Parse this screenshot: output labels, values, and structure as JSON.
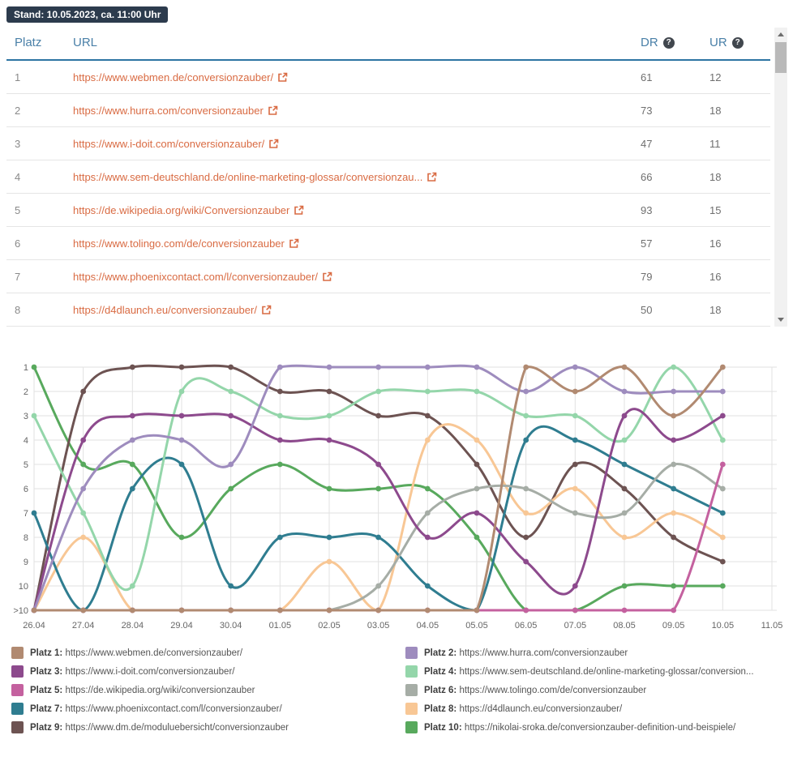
{
  "status_badge": "Stand: 10.05.2023, ca. 11:00 Uhr",
  "table": {
    "columns": {
      "platz": "Platz",
      "url": "URL",
      "dr": "DR",
      "ur": "UR"
    },
    "rows": [
      {
        "platz": "1",
        "url": "https://www.webmen.de/conversionzauber/",
        "dr": "61",
        "ur": "12"
      },
      {
        "platz": "2",
        "url": "https://www.hurra.com/conversionzauber",
        "dr": "73",
        "ur": "18"
      },
      {
        "platz": "3",
        "url": "https://www.i-doit.com/conversionzauber/",
        "dr": "47",
        "ur": "11"
      },
      {
        "platz": "4",
        "url": "https://www.sem-deutschland.de/online-marketing-glossar/conversionzau...",
        "dr": "66",
        "ur": "18"
      },
      {
        "platz": "5",
        "url": "https://de.wikipedia.org/wiki/Conversionzauber",
        "dr": "93",
        "ur": "15"
      },
      {
        "platz": "6",
        "url": "https://www.tolingo.com/de/conversionzauber",
        "dr": "57",
        "ur": "16"
      },
      {
        "platz": "7",
        "url": "https://www.phoenixcontact.com/l/conversionzauber/",
        "dr": "79",
        "ur": "16"
      },
      {
        "platz": "8",
        "url": "https://d4dlaunch.eu/conversionzauber/",
        "dr": "50",
        "ur": "18"
      }
    ]
  },
  "chart_data": {
    "type": "line",
    "x": [
      "26.04",
      "27.04",
      "28.04",
      "29.04",
      "30.04",
      "01.05",
      "02.05",
      "03.05",
      "04.05",
      "05.05",
      "06.05",
      "07.05",
      "08.05",
      "09.05",
      "10.05",
      "11.05"
    ],
    "y_labels": [
      "1",
      "2",
      "3",
      "4",
      "5",
      "6",
      "7",
      "8",
      "9",
      "10",
      ">10"
    ],
    "y_axis_note": "rank scale, 1 best at top, 11 encodes >10",
    "gt10_value": 11,
    "grid": true,
    "legend_position": "bottom",
    "series": [
      {
        "name": "Platz 1: https://www.webmen.de/conversionzauber/",
        "color": "#b18a71",
        "values": [
          11,
          11,
          11,
          11,
          11,
          11,
          11,
          11,
          11,
          11,
          1,
          2,
          1,
          3,
          1
        ]
      },
      {
        "name": "Platz 2: https://www.hurra.com/conversionzauber",
        "color": "#9e8cbe",
        "values": [
          11,
          6,
          4,
          4,
          5,
          1,
          1,
          1,
          1,
          1,
          2,
          1,
          2,
          2,
          2
        ]
      },
      {
        "name": "Platz 3: https://www.i-doit.com/conversionzauber/",
        "color": "#8d4a8d",
        "values": [
          11,
          4,
          3,
          3,
          3,
          4,
          4,
          5,
          8,
          7,
          9,
          10,
          3,
          4,
          3
        ]
      },
      {
        "name": "Platz 4: https://www.sem-deutschland.de/online-marketing-glossar/conversion...",
        "color": "#94d6aa",
        "values": [
          3,
          7,
          10,
          2,
          2,
          3,
          3,
          2,
          2,
          2,
          3,
          3,
          4,
          1,
          4
        ]
      },
      {
        "name": "Platz 5: https://de.wikipedia.org/wiki/conversionzauber",
        "color": "#c4619f",
        "values": [
          11,
          11,
          11,
          11,
          11,
          11,
          11,
          11,
          11,
          11,
          11,
          11,
          11,
          11,
          5
        ]
      },
      {
        "name": "Platz 6: https://www.tolingo.com/de/conversionzauber",
        "color": "#a6ada6",
        "values": [
          11,
          11,
          11,
          11,
          11,
          11,
          11,
          10,
          7,
          6,
          6,
          7,
          7,
          5,
          6
        ]
      },
      {
        "name": "Platz 7: https://www.phoenixcontact.com/l/conversionzauber/",
        "color": "#2f7d90",
        "values": [
          7,
          11,
          6,
          5,
          10,
          8,
          8,
          8,
          10,
          11,
          4,
          4,
          5,
          6,
          7
        ]
      },
      {
        "name": "Platz 8: https://d4dlaunch.eu/conversionzauber/",
        "color": "#f8c795",
        "values": [
          11,
          8,
          11,
          11,
          11,
          11,
          9,
          11,
          4,
          4,
          7,
          6,
          8,
          7,
          8
        ]
      },
      {
        "name": "Platz 9: https://www.dm.de/moduluebersicht/conversionzauber",
        "color": "#6d5352",
        "values": [
          11,
          2,
          1,
          1,
          1,
          2,
          2,
          3,
          3,
          5,
          8,
          5,
          6,
          8,
          9
        ]
      },
      {
        "name": "Platz 10: https://nikolai-sroka.de/conversionzauber-definition-und-beispiele/",
        "color": "#58a95d",
        "values": [
          1,
          5,
          5,
          8,
          6,
          5,
          6,
          6,
          6,
          8,
          11,
          11,
          10,
          10,
          10
        ]
      }
    ]
  },
  "legend": {
    "items": [
      {
        "platz": "Platz 1:",
        "url": "https://www.webmen.de/conversionzauber/",
        "color": "#b18a71"
      },
      {
        "platz": "Platz 2:",
        "url": "https://www.hurra.com/conversionzauber",
        "color": "#9e8cbe"
      },
      {
        "platz": "Platz 3:",
        "url": "https://www.i-doit.com/conversionzauber/",
        "color": "#8d4a8d"
      },
      {
        "platz": "Platz 4:",
        "url": "https://www.sem-deutschland.de/online-marketing-glossar/conversion...",
        "color": "#94d6aa"
      },
      {
        "platz": "Platz 5:",
        "url": "https://de.wikipedia.org/wiki/conversionzauber",
        "color": "#c4619f"
      },
      {
        "platz": "Platz 6:",
        "url": "https://www.tolingo.com/de/conversionzauber",
        "color": "#a6ada6"
      },
      {
        "platz": "Platz 7:",
        "url": "https://www.phoenixcontact.com/l/conversionzauber/",
        "color": "#2f7d90"
      },
      {
        "platz": "Platz 8:",
        "url": "https://d4dlaunch.eu/conversionzauber/",
        "color": "#f8c795"
      },
      {
        "platz": "Platz 9:",
        "url": "https://www.dm.de/moduluebersicht/conversionzauber",
        "color": "#6d5352"
      },
      {
        "platz": "Platz 10:",
        "url": "https://nikolai-sroka.de/conversionzauber-definition-und-beispiele/",
        "color": "#58a95d"
      }
    ]
  }
}
